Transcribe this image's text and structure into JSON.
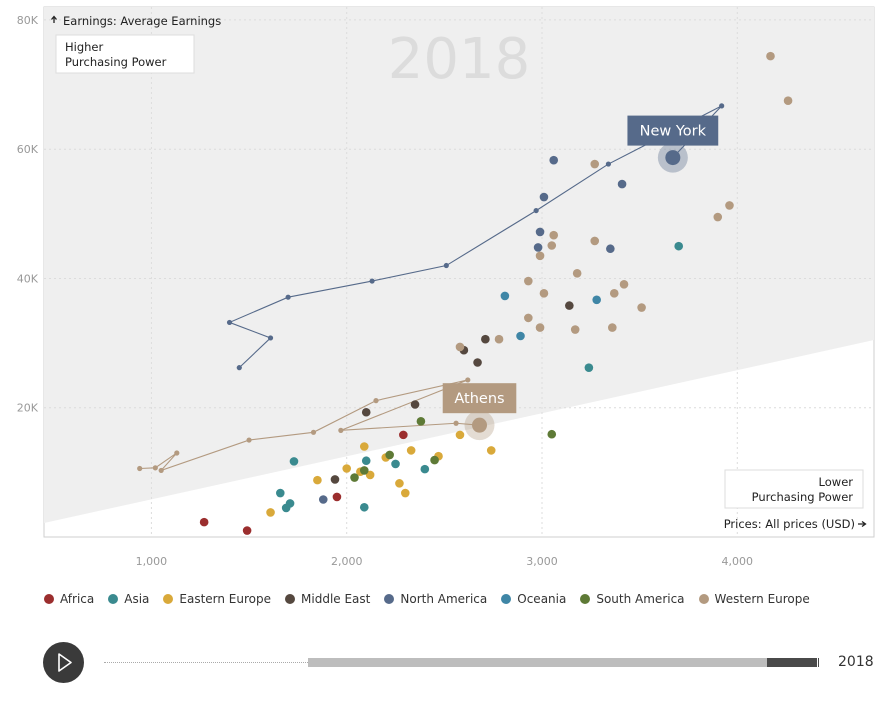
{
  "chart_data": {
    "type": "scatter",
    "year": "2018",
    "y_axis_label": "Earnings: Average Earnings",
    "x_axis_label": "Prices: All prices (USD)",
    "region_labels": {
      "upper": "Higher\nPurchasing Power",
      "lower": "Lower\nPurchasing Power"
    },
    "xlim": [
      450,
      4700
    ],
    "ylim": [
      0,
      82000
    ],
    "x_ticks": [
      1000,
      2000,
      3000,
      4000
    ],
    "x_tick_labels": [
      "1,000",
      "2,000",
      "3,000",
      "4,000"
    ],
    "y_ticks": [
      20000,
      40000,
      60000,
      80000
    ],
    "y_tick_labels": [
      "20K",
      "40K",
      "60K",
      "80K"
    ],
    "grid": true,
    "legend_position": "bottom",
    "categories": [
      {
        "name": "Africa",
        "color": "#9b2e2e"
      },
      {
        "name": "Asia",
        "color": "#3a8a8f"
      },
      {
        "name": "Eastern Europe",
        "color": "#d9a93a"
      },
      {
        "name": "Middle East",
        "color": "#55483f"
      },
      {
        "name": "North America",
        "color": "#566a8a"
      },
      {
        "name": "Oceania",
        "color": "#3f86a6"
      },
      {
        "name": "South America",
        "color": "#5e7a36"
      },
      {
        "name": "Western Europe",
        "color": "#b39a80"
      }
    ],
    "points": [
      {
        "x": 1270,
        "y": 2300,
        "c": 0
      },
      {
        "x": 1490,
        "y": 1000,
        "c": 0
      },
      {
        "x": 1950,
        "y": 6200,
        "c": 0
      },
      {
        "x": 2290,
        "y": 15800,
        "c": 0
      },
      {
        "x": 1730,
        "y": 11700,
        "c": 1
      },
      {
        "x": 1660,
        "y": 6800,
        "c": 1
      },
      {
        "x": 1690,
        "y": 4500,
        "c": 1
      },
      {
        "x": 1710,
        "y": 5200,
        "c": 1
      },
      {
        "x": 2090,
        "y": 4600,
        "c": 1
      },
      {
        "x": 2100,
        "y": 11800,
        "c": 1
      },
      {
        "x": 2250,
        "y": 11300,
        "c": 1
      },
      {
        "x": 2400,
        "y": 10500,
        "c": 1
      },
      {
        "x": 3700,
        "y": 45000,
        "c": 1
      },
      {
        "x": 3240,
        "y": 26200,
        "c": 1
      },
      {
        "x": 1610,
        "y": 3800,
        "c": 2
      },
      {
        "x": 1850,
        "y": 8800,
        "c": 2
      },
      {
        "x": 2000,
        "y": 10600,
        "c": 2
      },
      {
        "x": 2070,
        "y": 10100,
        "c": 2
      },
      {
        "x": 2090,
        "y": 14000,
        "c": 2
      },
      {
        "x": 2120,
        "y": 9600,
        "c": 2
      },
      {
        "x": 2200,
        "y": 12300,
        "c": 2
      },
      {
        "x": 2270,
        "y": 8300,
        "c": 2
      },
      {
        "x": 2300,
        "y": 6800,
        "c": 2
      },
      {
        "x": 2330,
        "y": 13400,
        "c": 2
      },
      {
        "x": 2470,
        "y": 12500,
        "c": 2
      },
      {
        "x": 2580,
        "y": 15800,
        "c": 2
      },
      {
        "x": 2740,
        "y": 13400,
        "c": 2
      },
      {
        "x": 1940,
        "y": 8900,
        "c": 3
      },
      {
        "x": 2100,
        "y": 19300,
        "c": 3
      },
      {
        "x": 2350,
        "y": 20500,
        "c": 3
      },
      {
        "x": 2600,
        "y": 28900,
        "c": 3
      },
      {
        "x": 2670,
        "y": 27000,
        "c": 3
      },
      {
        "x": 2710,
        "y": 30600,
        "c": 3
      },
      {
        "x": 3140,
        "y": 35800,
        "c": 3
      },
      {
        "x": 2990,
        "y": 47200,
        "c": 4
      },
      {
        "x": 3010,
        "y": 52600,
        "c": 4
      },
      {
        "x": 2980,
        "y": 44800,
        "c": 4
      },
      {
        "x": 3060,
        "y": 58300,
        "c": 4
      },
      {
        "x": 3350,
        "y": 44600,
        "c": 4
      },
      {
        "x": 3410,
        "y": 54600,
        "c": 4
      },
      {
        "x": 1880,
        "y": 5800,
        "c": 4
      },
      {
        "x": 2810,
        "y": 37300,
        "c": 5
      },
      {
        "x": 2890,
        "y": 31100,
        "c": 5
      },
      {
        "x": 3280,
        "y": 36700,
        "c": 5
      },
      {
        "x": 2040,
        "y": 9200,
        "c": 6
      },
      {
        "x": 2090,
        "y": 10300,
        "c": 6
      },
      {
        "x": 2220,
        "y": 12700,
        "c": 6
      },
      {
        "x": 2380,
        "y": 17900,
        "c": 6
      },
      {
        "x": 2450,
        "y": 11900,
        "c": 6
      },
      {
        "x": 3050,
        "y": 15900,
        "c": 6
      },
      {
        "x": 2580,
        "y": 29400,
        "c": 7
      },
      {
        "x": 2780,
        "y": 30600,
        "c": 7
      },
      {
        "x": 2930,
        "y": 39600,
        "c": 7
      },
      {
        "x": 2930,
        "y": 33900,
        "c": 7
      },
      {
        "x": 2990,
        "y": 32400,
        "c": 7
      },
      {
        "x": 3010,
        "y": 37700,
        "c": 7
      },
      {
        "x": 2990,
        "y": 43500,
        "c": 7
      },
      {
        "x": 3050,
        "y": 45100,
        "c": 7
      },
      {
        "x": 3060,
        "y": 46700,
        "c": 7
      },
      {
        "x": 3180,
        "y": 40800,
        "c": 7
      },
      {
        "x": 3170,
        "y": 32100,
        "c": 7
      },
      {
        "x": 3270,
        "y": 45800,
        "c": 7
      },
      {
        "x": 3270,
        "y": 57700,
        "c": 7
      },
      {
        "x": 3370,
        "y": 37700,
        "c": 7
      },
      {
        "x": 3360,
        "y": 32400,
        "c": 7
      },
      {
        "x": 3420,
        "y": 39100,
        "c": 7
      },
      {
        "x": 3510,
        "y": 35500,
        "c": 7
      },
      {
        "x": 3900,
        "y": 49500,
        "c": 7
      },
      {
        "x": 3960,
        "y": 51300,
        "c": 7
      },
      {
        "x": 4170,
        "y": 74400,
        "c": 7
      },
      {
        "x": 4260,
        "y": 67500,
        "c": 7
      }
    ],
    "highlights": [
      {
        "label": "New York",
        "c": 4,
        "x": 3670,
        "y": 58700,
        "trail": [
          {
            "x": 1450,
            "y": 26200
          },
          {
            "x": 1610,
            "y": 30800
          },
          {
            "x": 1400,
            "y": 33200
          },
          {
            "x": 1700,
            "y": 37100
          },
          {
            "x": 2130,
            "y": 39600
          },
          {
            "x": 2510,
            "y": 42000
          },
          {
            "x": 2970,
            "y": 50500
          },
          {
            "x": 3340,
            "y": 57700
          },
          {
            "x": 3920,
            "y": 66700
          },
          {
            "x": 3670,
            "y": 58700
          }
        ]
      },
      {
        "label": "Athens",
        "c": 7,
        "x": 2680,
        "y": 17300,
        "trail": [
          {
            "x": 940,
            "y": 10600
          },
          {
            "x": 1020,
            "y": 10700
          },
          {
            "x": 1130,
            "y": 13000
          },
          {
            "x": 1050,
            "y": 10300
          },
          {
            "x": 1500,
            "y": 15000
          },
          {
            "x": 1830,
            "y": 16200
          },
          {
            "x": 2150,
            "y": 21100
          },
          {
            "x": 2620,
            "y": 24300
          },
          {
            "x": 1970,
            "y": 16500
          },
          {
            "x": 2560,
            "y": 17600
          },
          {
            "x": 2680,
            "y": 17300
          }
        ]
      }
    ]
  },
  "controls": {
    "play_icon": "play-icon",
    "progress": 0.98,
    "year_readout": "2018"
  }
}
